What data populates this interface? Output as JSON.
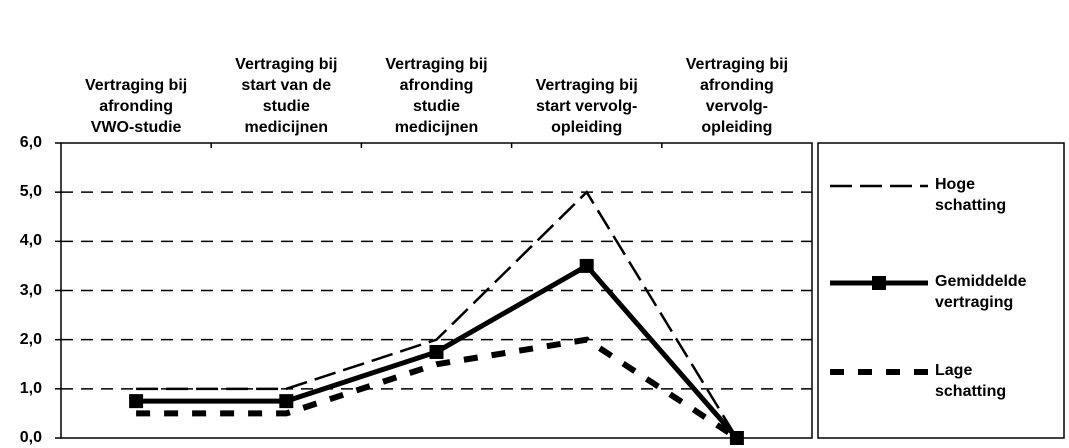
{
  "chart_data": {
    "type": "line",
    "categories": [
      "Vertraging bij\nafronding\nVWO-studie",
      "Vertraging bij\nstart van de\nstudie\nmedicijnen",
      "Vertraging bij\nafronding\nstudie\nmedicijnen",
      "Vertraging bij\nstart vervolg-\nopleiding",
      "Vertraging bij\nafronding\nvervolg-\nopleiding"
    ],
    "series": [
      {
        "name": "Hoge\nschatting",
        "color": "#000000",
        "dash": "long-dash",
        "values": [
          1,
          1,
          2,
          5,
          0
        ]
      },
      {
        "name": "Gemiddelde\nvertraging",
        "color": "#000000",
        "dash": "solid",
        "marker": "square",
        "values": [
          0.75,
          0.75,
          1.75,
          3.5,
          0
        ]
      },
      {
        "name": "Lage\nschatting",
        "color": "#000000",
        "dash": "short-dash",
        "values": [
          0.5,
          0.5,
          1.5,
          2,
          0
        ]
      }
    ],
    "ylim": [
      0,
      6
    ],
    "yticks": [
      {
        "value": 0,
        "label": "0,0"
      },
      {
        "value": 1,
        "label": "1,0"
      },
      {
        "value": 2,
        "label": "2,0"
      },
      {
        "value": 3,
        "label": "3,0"
      },
      {
        "value": 4,
        "label": "4,0"
      },
      {
        "value": 5,
        "label": "5,0"
      },
      {
        "value": 6,
        "label": "6,0"
      }
    ],
    "grid": true,
    "legend": "right"
  }
}
